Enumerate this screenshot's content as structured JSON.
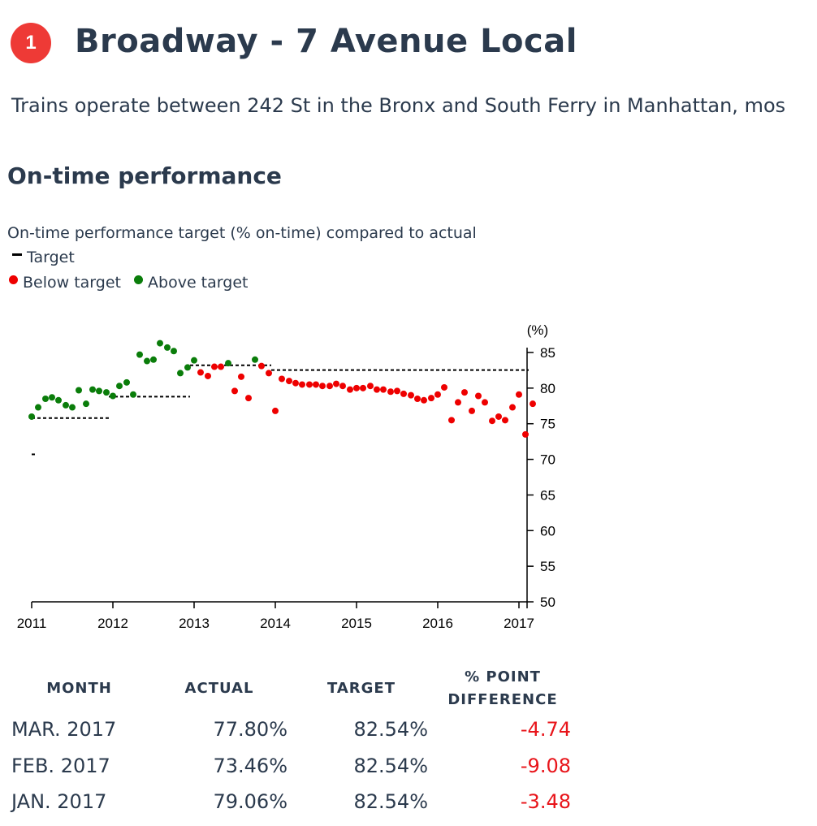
{
  "route": {
    "badge": "1",
    "title": "Broadway - 7 Avenue Local",
    "description": "Trains operate between 242 St in the Bronx and South Ferry in Manhattan, mos"
  },
  "section_title": "On-time performance",
  "chart_caption": "On-time performance target (% on-time) compared to actual",
  "legend": {
    "target": "Target",
    "below": "Below target",
    "above": "Above target"
  },
  "colors": {
    "below": "#ee0000",
    "above": "#0a7d0a",
    "target": "#000000",
    "diff_negative": "#e8141a"
  },
  "chart_data": {
    "type": "scatter",
    "ylabel": "(%)",
    "ylim": [
      50,
      86
    ],
    "xlim": [
      2011,
      2017.1
    ],
    "x_ticks": [
      "2011",
      "2012",
      "2013",
      "2014",
      "2015",
      "2016",
      "2017"
    ],
    "y_ticks": [
      "50",
      "55",
      "60",
      "65",
      "70",
      "75",
      "80",
      "85"
    ],
    "grid": false,
    "legend_position": "top-left",
    "target_segments": [
      {
        "from": 2011.0,
        "to": 2011.01,
        "value": 70.7
      },
      {
        "from": 2011.0,
        "to": 2011.95,
        "value": 75.8
      },
      {
        "from": 2011.95,
        "to": 2012.95,
        "value": 78.8
      },
      {
        "from": 2012.95,
        "to": 2013.95,
        "value": 83.2
      },
      {
        "from": 2013.95,
        "to": 2017.12,
        "value": 82.54
      }
    ],
    "points": [
      [
        2011.0,
        76.0
      ],
      [
        2011.08,
        77.3
      ],
      [
        2011.17,
        78.5
      ],
      [
        2011.25,
        78.7
      ],
      [
        2011.33,
        78.3
      ],
      [
        2011.42,
        77.6
      ],
      [
        2011.5,
        77.3
      ],
      [
        2011.58,
        79.7
      ],
      [
        2011.67,
        77.8
      ],
      [
        2011.75,
        79.8
      ],
      [
        2011.83,
        79.6
      ],
      [
        2011.92,
        79.4
      ],
      [
        2012.0,
        78.9
      ],
      [
        2012.08,
        80.3
      ],
      [
        2012.17,
        80.8
      ],
      [
        2012.25,
        79.1
      ],
      [
        2012.33,
        84.7
      ],
      [
        2012.42,
        83.8
      ],
      [
        2012.5,
        84.0
      ],
      [
        2012.58,
        86.3
      ],
      [
        2012.67,
        85.7
      ],
      [
        2012.75,
        85.2
      ],
      [
        2012.83,
        82.1
      ],
      [
        2012.92,
        82.9
      ],
      [
        2013.0,
        83.9
      ],
      [
        2013.08,
        82.2
      ],
      [
        2013.17,
        81.7
      ],
      [
        2013.25,
        83.0
      ],
      [
        2013.33,
        83.0
      ],
      [
        2013.42,
        83.5
      ],
      [
        2013.5,
        79.6
      ],
      [
        2013.58,
        81.6
      ],
      [
        2013.67,
        78.6
      ],
      [
        2013.75,
        84.0
      ],
      [
        2013.83,
        83.1
      ],
      [
        2013.92,
        82.1
      ],
      [
        2014.0,
        76.8
      ],
      [
        2014.08,
        81.3
      ],
      [
        2014.17,
        81.0
      ],
      [
        2014.25,
        80.7
      ],
      [
        2014.33,
        80.5
      ],
      [
        2014.42,
        80.5
      ],
      [
        2014.5,
        80.5
      ],
      [
        2014.58,
        80.3
      ],
      [
        2014.67,
        80.3
      ],
      [
        2014.75,
        80.6
      ],
      [
        2014.83,
        80.3
      ],
      [
        2014.92,
        79.8
      ],
      [
        2015.0,
        80.0
      ],
      [
        2015.08,
        80.0
      ],
      [
        2015.17,
        80.3
      ],
      [
        2015.25,
        79.8
      ],
      [
        2015.33,
        79.8
      ],
      [
        2015.42,
        79.5
      ],
      [
        2015.5,
        79.6
      ],
      [
        2015.58,
        79.2
      ],
      [
        2015.67,
        79.0
      ],
      [
        2015.75,
        78.5
      ],
      [
        2015.83,
        78.3
      ],
      [
        2015.92,
        78.6
      ],
      [
        2016.0,
        79.1
      ],
      [
        2016.08,
        80.1
      ],
      [
        2016.17,
        75.5
      ],
      [
        2016.25,
        78.0
      ],
      [
        2016.33,
        79.4
      ],
      [
        2016.42,
        76.8
      ],
      [
        2016.5,
        78.9
      ],
      [
        2016.58,
        78.0
      ],
      [
        2016.67,
        75.4
      ],
      [
        2016.75,
        76.0
      ],
      [
        2016.83,
        75.5
      ],
      [
        2016.92,
        77.3
      ],
      [
        2017.0,
        79.1
      ],
      [
        2017.08,
        73.5
      ],
      [
        2017.17,
        77.8
      ]
    ],
    "table": {
      "headers": {
        "month": "MONTH",
        "actual": "ACTUAL",
        "target": "TARGET",
        "diff_line1": "% POINT",
        "diff_line2": "DIFFERENCE"
      },
      "rows": [
        {
          "month": "MAR. 2017",
          "actual": "77.80%",
          "target": "82.54%",
          "diff": "-4.74"
        },
        {
          "month": "FEB. 2017",
          "actual": "73.46%",
          "target": "82.54%",
          "diff": "-9.08"
        },
        {
          "month": "JAN. 2017",
          "actual": "79.06%",
          "target": "82.54%",
          "diff": "-3.48"
        }
      ]
    }
  }
}
